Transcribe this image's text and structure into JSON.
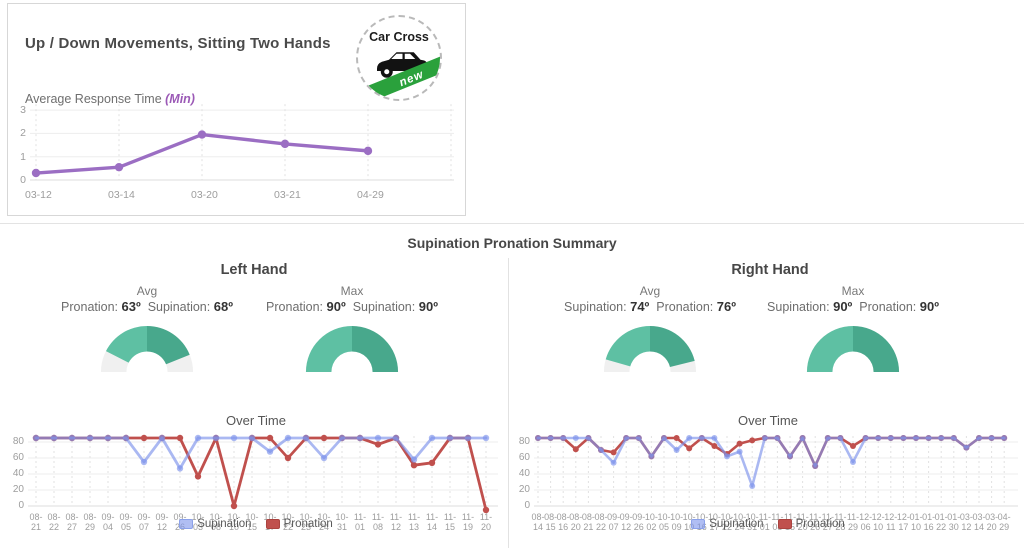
{
  "top_card": {
    "title": "Up / Down Movements, Sitting Two Hands",
    "subtitle_prefix": "Average Response Time ",
    "subtitle_unit": "(Min)",
    "logo": {
      "line1": "Car Cross",
      "badge": "new"
    }
  },
  "summary": {
    "title": "Supination Pronation Summary",
    "gauge_colors": {
      "left_fill": "#5ec0a3",
      "right_fill": "#48a88c",
      "track": "#f0f0f0"
    },
    "hands": [
      {
        "name": "Left Hand",
        "gauges": [
          {
            "label": "Avg",
            "left_label": "Pronation:",
            "left_value": "63º",
            "right_label": "Supination:",
            "right_value": "68º",
            "left_deg": 63,
            "right_deg": 68
          },
          {
            "label": "Max",
            "left_label": "Pronation:",
            "left_value": "90º",
            "right_label": "Supination:",
            "right_value": "90º",
            "left_deg": 90,
            "right_deg": 90
          }
        ]
      },
      {
        "name": "Right Hand",
        "gauges": [
          {
            "label": "Avg",
            "left_label": "Supination:",
            "left_value": "74º",
            "right_label": "Pronation:",
            "right_value": "76º",
            "left_deg": 74,
            "right_deg": 76
          },
          {
            "label": "Max",
            "left_label": "Supination:",
            "left_value": "90º",
            "right_label": "Pronation:",
            "right_value": "90º",
            "left_deg": 90,
            "right_deg": 90
          }
        ]
      }
    ]
  },
  "chart_data": [
    {
      "type": "line",
      "title": "Up / Down Movements, Sitting Two Hands",
      "ylabel": "Average Response Time (Min)",
      "categories": [
        "03-12",
        "03-14",
        "03-20",
        "03-21",
        "04-29"
      ],
      "series": [
        {
          "name": "Average Response Time",
          "color": "#9b6ec3",
          "swatch": "#9b6ec3",
          "values": [
            0.3,
            0.55,
            1.95,
            1.55,
            1.25
          ]
        }
      ],
      "yticks": [
        0,
        1,
        2,
        3
      ],
      "ylim": [
        0,
        3
      ],
      "grid": true,
      "legend_position": "none"
    },
    {
      "type": "line",
      "title": "Over Time",
      "hand": "Left Hand",
      "categories": [
        "08-21",
        "08-22",
        "08-27",
        "08-29",
        "09-04",
        "09-05",
        "09-07",
        "09-12",
        "09-26",
        "10-03",
        "10-08",
        "10-10",
        "10-15",
        "10-17",
        "10-22",
        "10-23",
        "10-24",
        "10-31",
        "11-01",
        "11-08",
        "11-12",
        "11-13",
        "11-14",
        "11-15",
        "11-19",
        "11-20"
      ],
      "series": [
        {
          "name": "Supination",
          "color": "rgba(124,146,235,0.65)",
          "swatch_bg": "rgba(124,146,235,0.6)",
          "swatch_bd": "#8ba1ea",
          "values": [
            85,
            85,
            85,
            85,
            85,
            85,
            55,
            85,
            47,
            85,
            85,
            85,
            85,
            68,
            85,
            85,
            60,
            85,
            85,
            85,
            85,
            58,
            85,
            85,
            85,
            85
          ]
        },
        {
          "name": "Pronation",
          "color": "#c0504d",
          "swatch_bg": "#c0504d",
          "swatch_bd": "#aa433f",
          "values": [
            85,
            85,
            85,
            85,
            85,
            85,
            85,
            85,
            85,
            37,
            85,
            0,
            85,
            85,
            60,
            85,
            85,
            85,
            85,
            77,
            85,
            51,
            54,
            85,
            85,
            -5
          ]
        }
      ],
      "yticks": [
        0,
        20,
        40,
        60,
        80
      ],
      "ylim": [
        -8,
        90
      ],
      "grid": true,
      "legend_position": "bottom"
    },
    {
      "type": "line",
      "title": "Over Time",
      "hand": "Right Hand",
      "categories": [
        "08-14",
        "08-15",
        "08-16",
        "08-20",
        "08-21",
        "08-22",
        "09-07",
        "09-12",
        "09-26",
        "10-02",
        "10-05",
        "10-09",
        "10-10",
        "10-16",
        "10-17",
        "10-22",
        "10-24",
        "10-31",
        "11-01",
        "11-08",
        "11-15",
        "11-20",
        "11-26",
        "11-27",
        "11-28",
        "11-29",
        "12-06",
        "12-10",
        "12-11",
        "12-17",
        "01-10",
        "01-16",
        "01-22",
        "01-30",
        "03-12",
        "03-14",
        "03-20",
        "04-29"
      ],
      "series": [
        {
          "name": "Supination",
          "color": "rgba(124,146,235,0.65)",
          "swatch_bg": "rgba(124,146,235,0.6)",
          "swatch_bd": "#8ba1ea",
          "values": [
            85,
            85,
            85,
            85,
            85,
            70,
            54,
            85,
            85,
            62,
            85,
            70,
            85,
            85,
            85,
            62,
            68,
            25,
            85,
            85,
            62,
            85,
            50,
            85,
            85,
            55,
            85,
            85,
            85,
            85,
            85,
            85,
            85,
            85,
            73,
            85,
            85,
            85
          ]
        },
        {
          "name": "Pronation",
          "color": "#c0504d",
          "swatch_bg": "#c0504d",
          "swatch_bd": "#aa433f",
          "values": [
            85,
            85,
            85,
            71,
            85,
            70,
            67,
            85,
            85,
            62,
            85,
            85,
            72,
            85,
            75,
            65,
            78,
            82,
            85,
            85,
            62,
            85,
            50,
            85,
            85,
            75,
            85,
            85,
            85,
            85,
            85,
            85,
            85,
            85,
            73,
            85,
            85,
            85
          ]
        }
      ],
      "yticks": [
        0,
        20,
        40,
        60,
        80
      ],
      "ylim": [
        -8,
        90
      ],
      "grid": true,
      "legend_position": "bottom"
    }
  ]
}
